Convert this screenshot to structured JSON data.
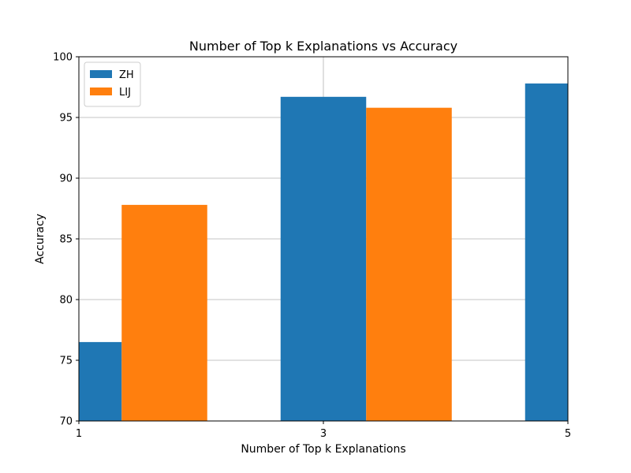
{
  "chart_data": {
    "type": "bar",
    "title": "Number of Top k Explanations vs Accuracy",
    "xlabel": "Number of Top k Explanations",
    "ylabel": "Accuracy",
    "categories": [
      "1",
      "3",
      "5"
    ],
    "x": [
      1,
      3,
      5
    ],
    "xlim": [
      1,
      5
    ],
    "ylim": [
      70,
      100
    ],
    "yticks": [
      70,
      75,
      80,
      85,
      90,
      95,
      100
    ],
    "grid": true,
    "legend_position": "top-left",
    "series": [
      {
        "name": "ZH",
        "color": "#1f77b4",
        "values": [
          76.5,
          96.7,
          97.8
        ]
      },
      {
        "name": "LIJ",
        "color": "#ff7f0e",
        "values": [
          87.8,
          95.8,
          null
        ]
      }
    ]
  }
}
